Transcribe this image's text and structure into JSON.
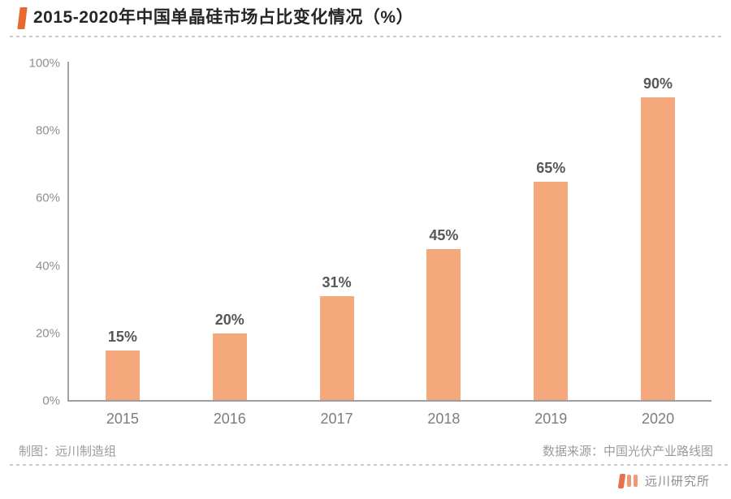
{
  "title": {
    "text": "2015-2020年中国单晶硅市场占比变化情况（%）",
    "marker_color": "#E8692F"
  },
  "chart_data": {
    "type": "bar",
    "title": "2015-2020年中国单晶硅市场占比变化情况（%）",
    "categories": [
      "2015",
      "2016",
      "2017",
      "2018",
      "2019",
      "2020"
    ],
    "values": [
      15,
      20,
      31,
      45,
      65,
      90
    ],
    "bar_labels": [
      "15%",
      "20%",
      "31%",
      "45%",
      "65%",
      "90%"
    ],
    "xlabel": "",
    "ylabel": "",
    "ylim": [
      0,
      100
    ],
    "yticks": [
      {
        "value": 0,
        "label": "0%"
      },
      {
        "value": 20,
        "label": "20%"
      },
      {
        "value": 40,
        "label": "40%"
      },
      {
        "value": 60,
        "label": "60%"
      },
      {
        "value": 80,
        "label": "80%"
      },
      {
        "value": 100,
        "label": "100%"
      }
    ],
    "grid": false,
    "legend": null,
    "bar_color": "#F5A87B"
  },
  "footer": {
    "credit": "制图：远川制造组",
    "source": "数据来源：中国光伏产业路线图"
  },
  "brand": {
    "name": "远川研究所",
    "logo_bar_colors": [
      "#E8714A",
      "#F09A74",
      "#F09A74"
    ]
  },
  "colors": {
    "accent_orange": "#E8692F",
    "bar_fill": "#F5A87B",
    "axis_line": "#9E9E9E",
    "tick_text": "#8F8F8F",
    "bar_label_text": "#575757",
    "category_text": "#7D7D7D",
    "footer_text": "#9B9B9B",
    "separator": "#CDCDCD",
    "title_text": "#262626"
  }
}
